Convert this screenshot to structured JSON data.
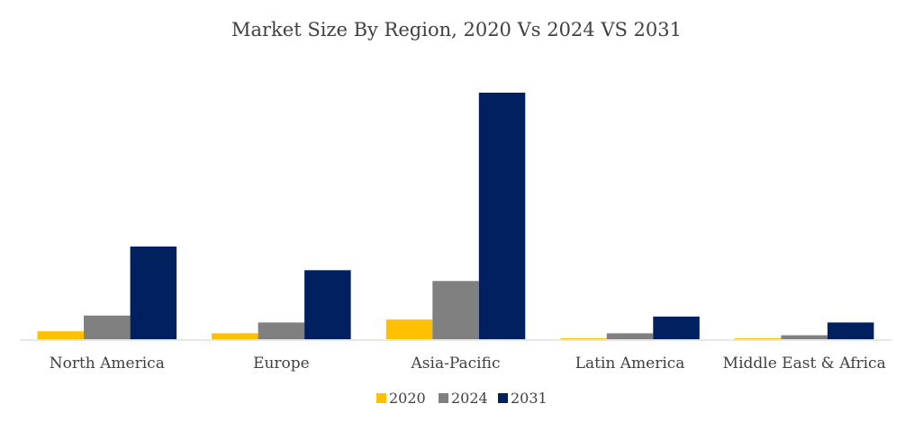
{
  "chart_data": {
    "type": "bar",
    "title": "Market Size By Region, 2020 Vs 2024 VS 2031",
    "xlabel": "",
    "ylabel": "",
    "categories": [
      "North America",
      "Europe",
      "Asia-Pacific",
      "Latin America",
      "Middle East & Africa"
    ],
    "series": [
      {
        "name": "2020",
        "color": "#FFC000",
        "values": [
          8,
          6,
          20,
          1,
          1
        ]
      },
      {
        "name": "2024",
        "color": "#808080",
        "values": [
          24,
          17,
          59,
          6,
          4
        ]
      },
      {
        "name": "2031",
        "color": "#002060",
        "values": [
          94,
          70,
          250,
          23,
          17
        ]
      }
    ],
    "ylim": [
      0,
      250
    ],
    "grid": false,
    "legend": "bottom-center"
  }
}
